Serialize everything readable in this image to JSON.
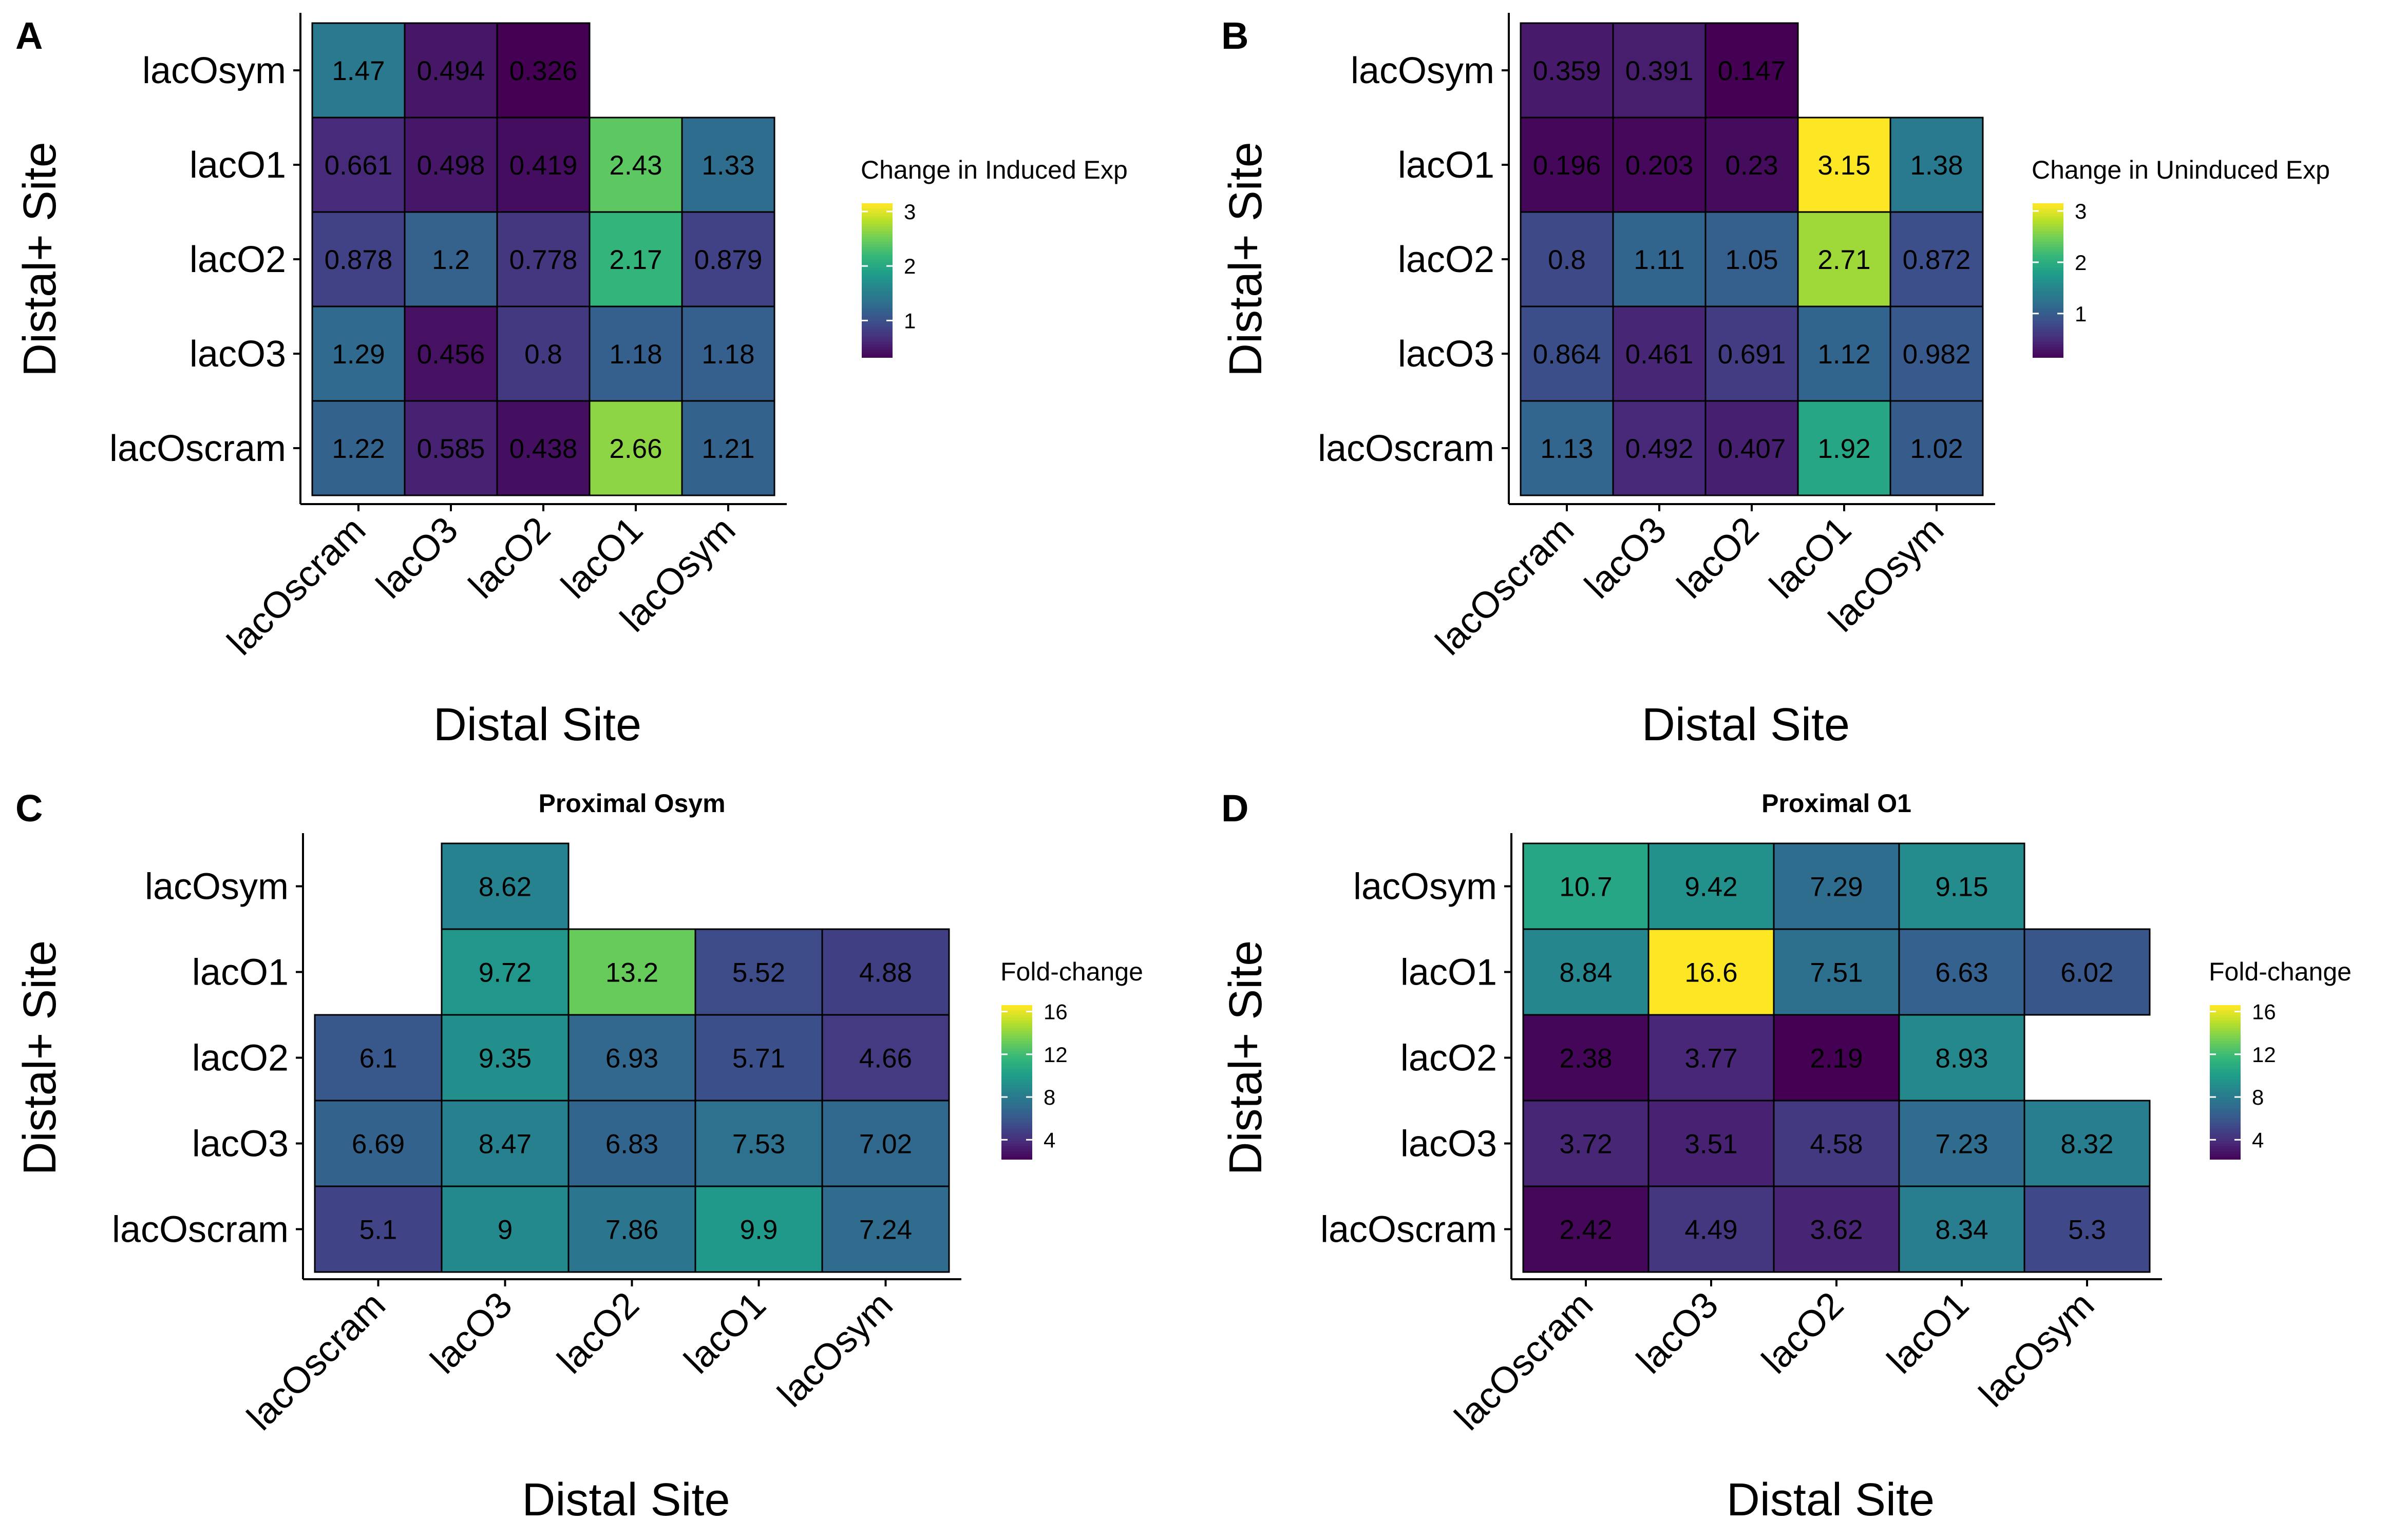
{
  "chart_data": [
    {
      "type": "heatmap",
      "panel_label": "A",
      "title": "",
      "xlabel": "Distal Site",
      "ylabel": "Distal+ Site",
      "x_categories": [
        "lacOscram",
        "lacO3",
        "lacO2",
        "lacO1",
        "lacOsym"
      ],
      "y_categories": [
        "lacOsym",
        "lacO1",
        "lacO2",
        "lacO3",
        "lacOscram"
      ],
      "values": [
        [
          1.47,
          0.494,
          0.326,
          null,
          null
        ],
        [
          0.661,
          0.498,
          0.419,
          2.43,
          1.33
        ],
        [
          0.878,
          1.2,
          0.778,
          2.17,
          0.879
        ],
        [
          1.29,
          0.456,
          0.8,
          1.18,
          1.18
        ],
        [
          1.22,
          0.585,
          0.438,
          2.66,
          1.21
        ]
      ],
      "colorbar": {
        "title": "Change in Induced Exp",
        "ticks": [
          1,
          2,
          3
        ],
        "range": [
          0.326,
          3.15
        ],
        "palette": "viridis"
      }
    },
    {
      "type": "heatmap",
      "panel_label": "B",
      "title": "",
      "xlabel": "Distal Site",
      "ylabel": "Distal+ Site",
      "x_categories": [
        "lacOscram",
        "lacO3",
        "lacO2",
        "lacO1",
        "lacOsym"
      ],
      "y_categories": [
        "lacOsym",
        "lacO1",
        "lacO2",
        "lacO3",
        "lacOscram"
      ],
      "values": [
        [
          0.359,
          0.391,
          0.147,
          null,
          null
        ],
        [
          0.196,
          0.203,
          0.23,
          3.15,
          1.38
        ],
        [
          0.8,
          1.11,
          1.05,
          2.71,
          0.872
        ],
        [
          0.864,
          0.461,
          0.691,
          1.12,
          0.982
        ],
        [
          1.13,
          0.492,
          0.407,
          1.92,
          1.02
        ]
      ],
      "colorbar": {
        "title": "Change in Uninduced Exp",
        "ticks": [
          1,
          2,
          3
        ],
        "range": [
          0.147,
          3.15
        ],
        "palette": "viridis"
      }
    },
    {
      "type": "heatmap",
      "panel_label": "C",
      "title": "Proximal Osym",
      "xlabel": "Distal Site",
      "ylabel": "Distal+ Site",
      "x_categories": [
        "lacOscram",
        "lacO3",
        "lacO2",
        "lacO1",
        "lacOsym"
      ],
      "y_categories": [
        "lacOsym",
        "lacO1",
        "lacO2",
        "lacO3",
        "lacOscram"
      ],
      "values": [
        [
          null,
          8.62,
          null,
          null,
          null
        ],
        [
          null,
          9.72,
          13.2,
          5.52,
          4.88
        ],
        [
          6.1,
          9.35,
          6.93,
          5.71,
          4.66
        ],
        [
          6.69,
          8.47,
          6.83,
          7.53,
          7.02
        ],
        [
          5.1,
          9,
          7.86,
          9.9,
          7.24
        ]
      ],
      "colorbar": {
        "title": "Fold-change",
        "ticks": [
          4,
          8,
          12,
          16
        ],
        "range": [
          2.19,
          16.6
        ],
        "palette": "viridis"
      }
    },
    {
      "type": "heatmap",
      "panel_label": "D",
      "title": "Proximal O1",
      "xlabel": "Distal Site",
      "ylabel": "Distal+ Site",
      "x_categories": [
        "lacOscram",
        "lacO3",
        "lacO2",
        "lacO1",
        "lacOsym"
      ],
      "y_categories": [
        "lacOsym",
        "lacO1",
        "lacO2",
        "lacO3",
        "lacOscram"
      ],
      "values": [
        [
          10.7,
          9.42,
          7.29,
          9.15,
          null
        ],
        [
          8.84,
          16.6,
          7.51,
          6.63,
          6.02
        ],
        [
          2.38,
          3.77,
          2.19,
          8.93,
          null
        ],
        [
          3.72,
          3.51,
          4.58,
          7.23,
          8.32
        ],
        [
          2.42,
          4.49,
          3.62,
          8.34,
          5.3
        ]
      ],
      "colorbar": {
        "title": "Fold-change",
        "ticks": [
          4,
          8,
          12,
          16
        ],
        "range": [
          2.19,
          16.6
        ],
        "palette": "viridis"
      }
    }
  ]
}
